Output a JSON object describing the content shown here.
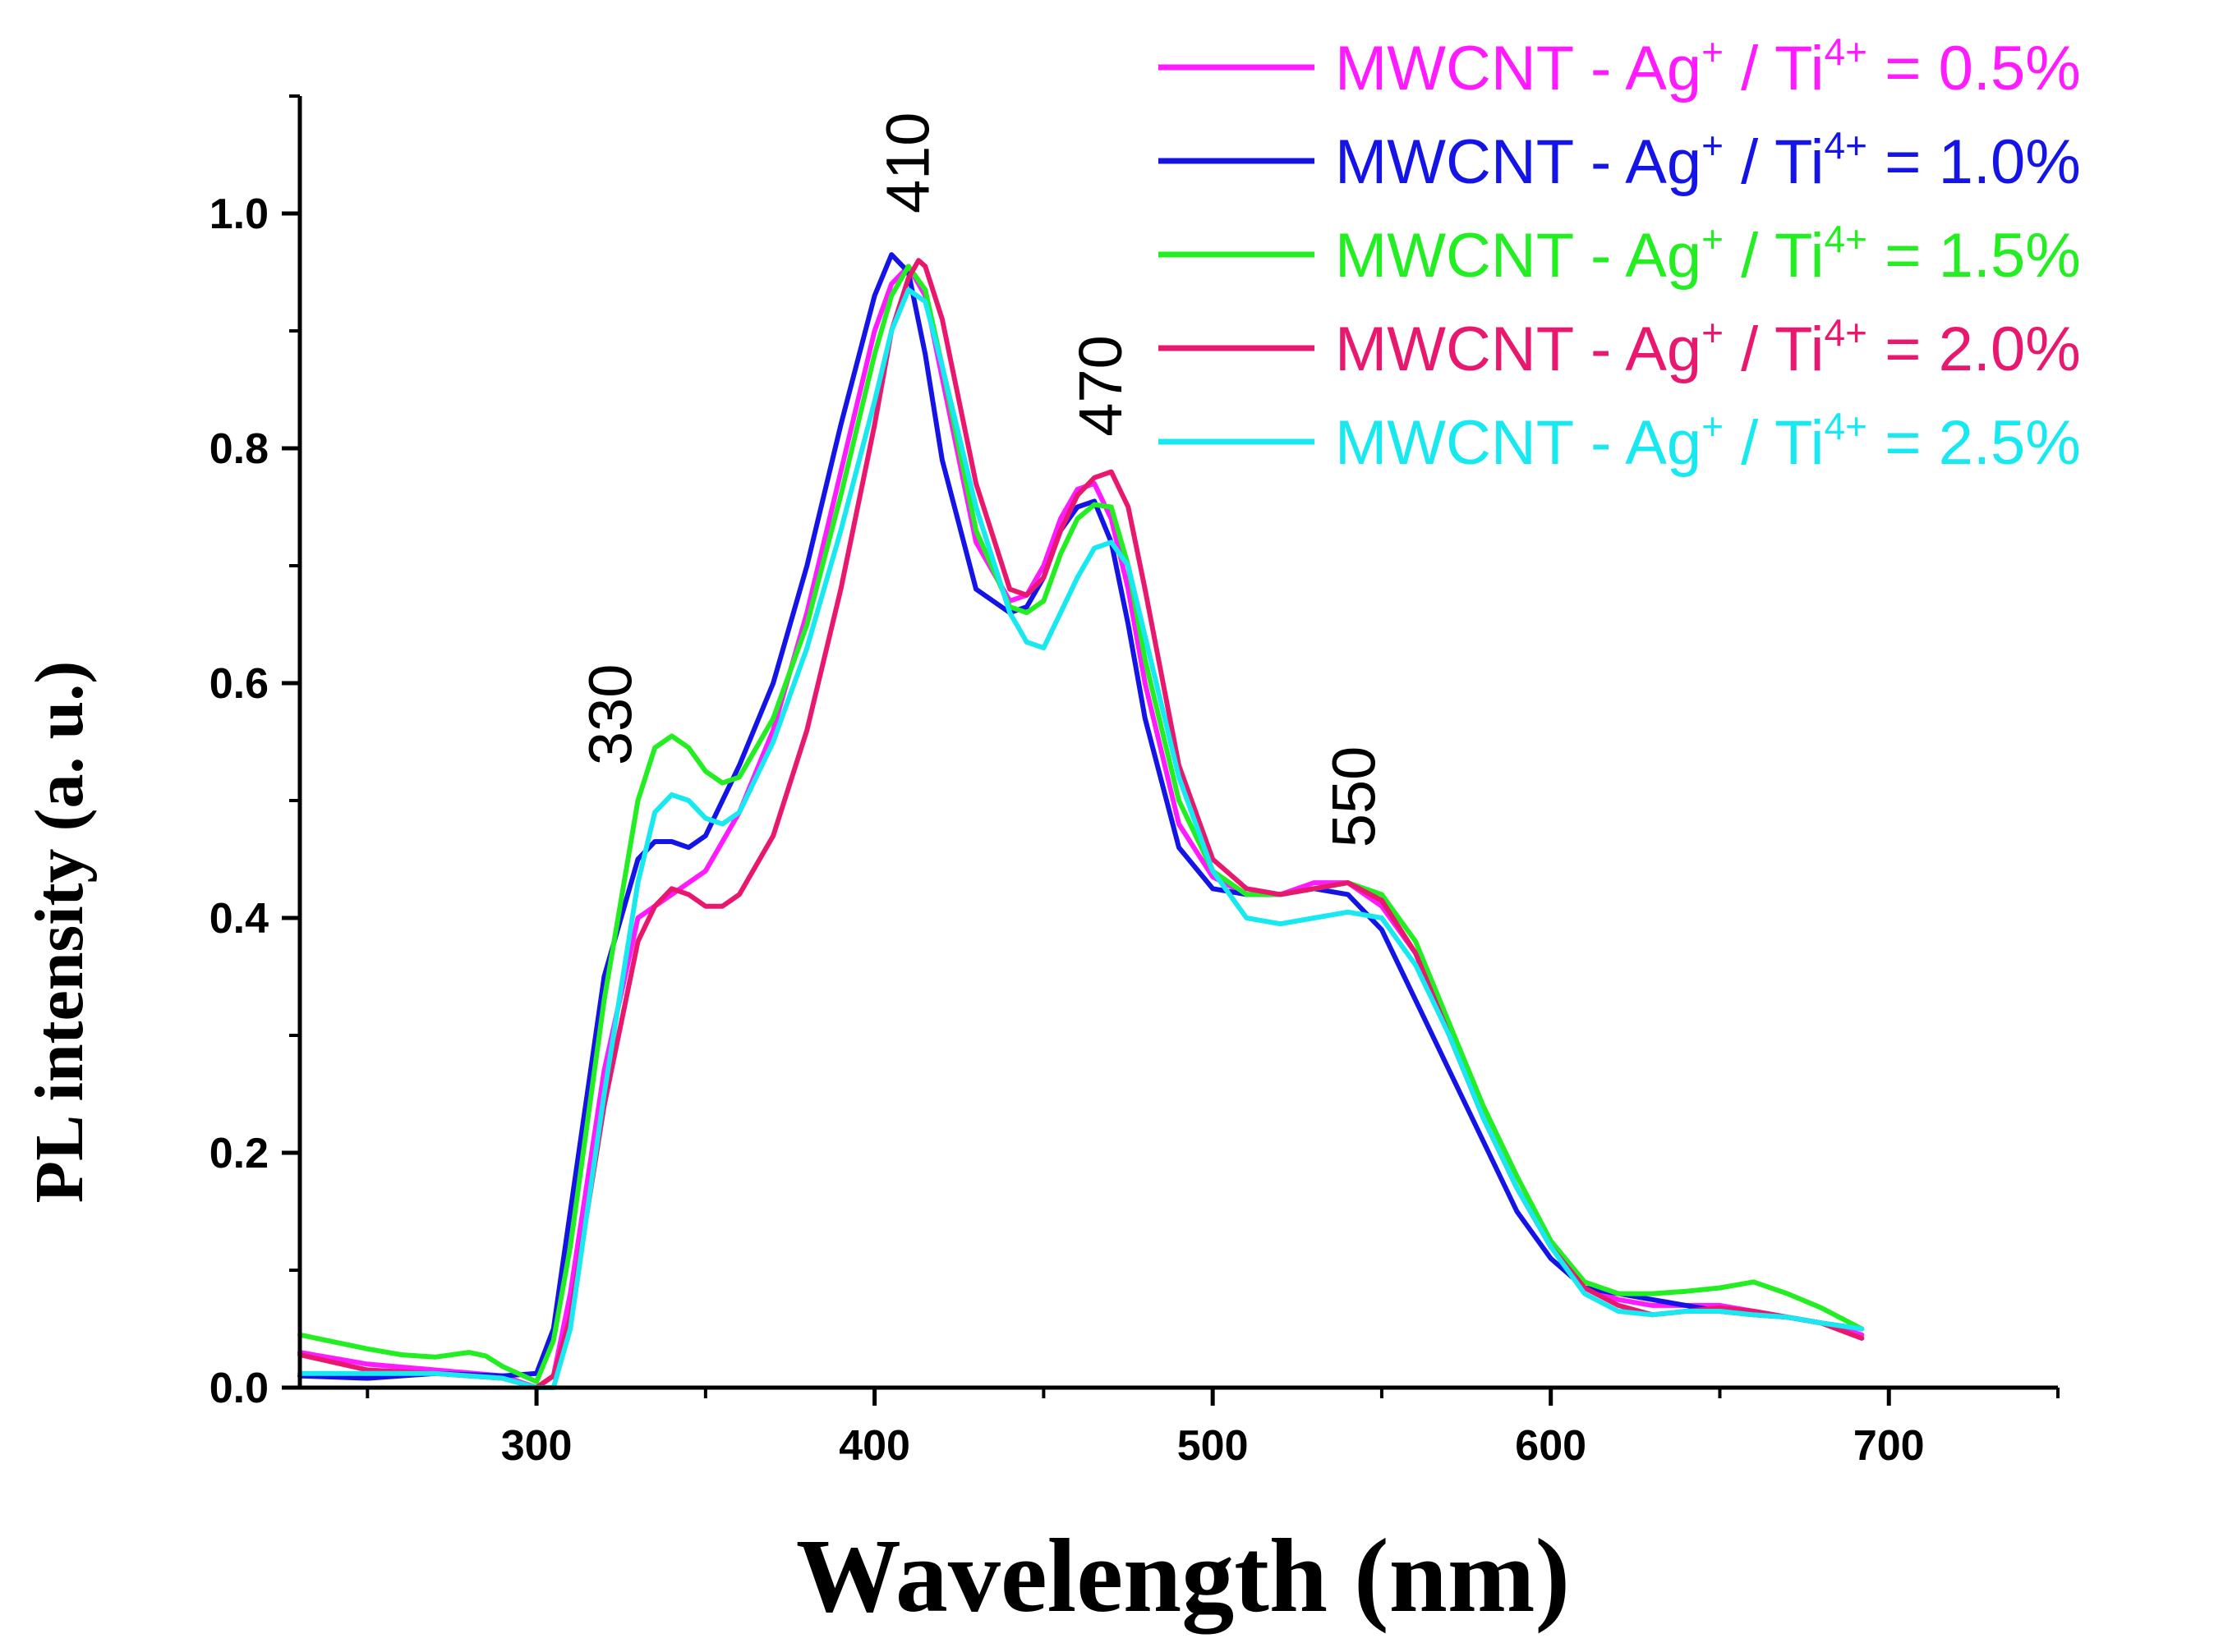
{
  "chart_data": {
    "type": "line",
    "title": "",
    "xlabel": "Wavelength (nm)",
    "ylabel": "PL intensity (a. u.)",
    "xlim": [
      230,
      750
    ],
    "ylim": [
      0,
      1.1
    ],
    "x_ticks": [
      "300",
      "400",
      "500",
      "600",
      "700"
    ],
    "y_ticks": [
      "0.0",
      "0.2",
      "0.4",
      "0.6",
      "0.8",
      "1.0"
    ],
    "annotations": [
      {
        "text": "330",
        "x": 328,
        "y": 0.53
      },
      {
        "text": "410",
        "x": 416,
        "y": 1.0
      },
      {
        "text": "470",
        "x": 473,
        "y": 0.81
      },
      {
        "text": "550",
        "x": 548,
        "y": 0.46
      }
    ],
    "legend_position": "top-right",
    "series": [
      {
        "name": "MWCNT - Ag+ / Ti4+ = 0.5%",
        "legend": {
          "prefix": "MWCNT - Ag",
          "sup1": "+",
          "mid": " / Ti",
          "sup2": "4+",
          "suffix": " = 0.5%"
        },
        "color": "#ff1aff",
        "x": [
          230,
          250,
          270,
          290,
          300,
          305,
          310,
          320,
          330,
          340,
          350,
          360,
          370,
          380,
          390,
          400,
          405,
          410,
          415,
          420,
          430,
          440,
          445,
          450,
          455,
          460,
          465,
          470,
          475,
          480,
          490,
          500,
          510,
          520,
          530,
          540,
          550,
          560,
          570,
          580,
          590,
          600,
          610,
          620,
          630,
          640,
          650,
          660,
          670,
          680,
          692
        ],
        "y": [
          0.03,
          0.02,
          0.015,
          0.01,
          0.0,
          0.01,
          0.08,
          0.27,
          0.4,
          0.42,
          0.44,
          0.49,
          0.56,
          0.66,
          0.78,
          0.9,
          0.94,
          0.955,
          0.93,
          0.86,
          0.72,
          0.67,
          0.675,
          0.7,
          0.74,
          0.765,
          0.77,
          0.74,
          0.68,
          0.6,
          0.48,
          0.435,
          0.42,
          0.42,
          0.43,
          0.43,
          0.41,
          0.37,
          0.3,
          0.23,
          0.17,
          0.12,
          0.085,
          0.075,
          0.07,
          0.07,
          0.07,
          0.065,
          0.06,
          0.055,
          0.045
        ]
      },
      {
        "name": "MWCNT - Ag+ / Ti4+ = 1.0%",
        "legend": {
          "prefix": "MWCNT - Ag",
          "sup1": "+",
          "mid": " / Ti",
          "sup2": "4+",
          "suffix": " = 1.0%"
        },
        "color": "#1414e6",
        "x": [
          230,
          250,
          270,
          290,
          300,
          305,
          310,
          320,
          330,
          335,
          340,
          345,
          350,
          360,
          370,
          380,
          390,
          400,
          405,
          410,
          415,
          420,
          430,
          440,
          445,
          450,
          455,
          460,
          465,
          470,
          475,
          480,
          490,
          500,
          510,
          520,
          530,
          540,
          550,
          560,
          570,
          580,
          590,
          600,
          610,
          620,
          630,
          640,
          650,
          660,
          670,
          680,
          692
        ],
        "y": [
          0.01,
          0.008,
          0.012,
          0.01,
          0.012,
          0.05,
          0.15,
          0.35,
          0.45,
          0.465,
          0.465,
          0.46,
          0.47,
          0.53,
          0.6,
          0.7,
          0.82,
          0.93,
          0.965,
          0.95,
          0.88,
          0.79,
          0.68,
          0.66,
          0.665,
          0.69,
          0.73,
          0.75,
          0.755,
          0.72,
          0.65,
          0.57,
          0.46,
          0.425,
          0.42,
          0.42,
          0.425,
          0.42,
          0.39,
          0.33,
          0.27,
          0.21,
          0.15,
          0.11,
          0.085,
          0.08,
          0.075,
          0.07,
          0.065,
          0.062,
          0.06,
          0.055,
          0.05
        ]
      },
      {
        "name": "MWCNT - Ag+ / Ti4+ = 1.5%",
        "legend": {
          "prefix": "MWCNT - Ag",
          "sup1": "+",
          "mid": " / Ti",
          "sup2": "4+",
          "suffix": " = 1.5%"
        },
        "color": "#22ee22",
        "x": [
          230,
          250,
          260,
          270,
          280,
          285,
          290,
          300,
          305,
          310,
          320,
          330,
          335,
          340,
          345,
          350,
          355,
          360,
          370,
          380,
          390,
          400,
          405,
          410,
          415,
          420,
          430,
          440,
          445,
          450,
          455,
          460,
          465,
          470,
          475,
          480,
          490,
          500,
          510,
          520,
          530,
          540,
          550,
          560,
          570,
          580,
          590,
          600,
          610,
          620,
          630,
          640,
          650,
          660,
          670,
          680,
          692
        ],
        "y": [
          0.045,
          0.033,
          0.028,
          0.026,
          0.03,
          0.027,
          0.018,
          0.005,
          0.04,
          0.12,
          0.33,
          0.5,
          0.545,
          0.555,
          0.545,
          0.525,
          0.515,
          0.52,
          0.57,
          0.65,
          0.76,
          0.88,
          0.93,
          0.955,
          0.935,
          0.87,
          0.73,
          0.665,
          0.66,
          0.67,
          0.71,
          0.74,
          0.752,
          0.75,
          0.7,
          0.62,
          0.5,
          0.44,
          0.42,
          0.42,
          0.425,
          0.43,
          0.42,
          0.38,
          0.31,
          0.24,
          0.18,
          0.125,
          0.09,
          0.08,
          0.08,
          0.082,
          0.085,
          0.09,
          0.08,
          0.068,
          0.05
        ]
      },
      {
        "name": "MWCNT - Ag+ / Ti4+ = 2.0%",
        "legend": {
          "prefix": "MWCNT - Ag",
          "sup1": "+",
          "mid": " / Ti",
          "sup2": "4+",
          "suffix": " = 2.0%"
        },
        "color": "#e8186f",
        "x": [
          230,
          250,
          270,
          290,
          300,
          305,
          310,
          320,
          330,
          335,
          340,
          345,
          350,
          355,
          360,
          370,
          380,
          390,
          400,
          405,
          410,
          413,
          415,
          420,
          430,
          440,
          445,
          450,
          455,
          460,
          465,
          470,
          475,
          480,
          490,
          500,
          510,
          520,
          530,
          540,
          550,
          560,
          570,
          580,
          590,
          600,
          610,
          620,
          630,
          640,
          650,
          660,
          670,
          680,
          692
        ],
        "y": [
          0.028,
          0.015,
          0.012,
          0.008,
          0.0,
          0.01,
          0.06,
          0.24,
          0.38,
          0.41,
          0.425,
          0.42,
          0.41,
          0.41,
          0.42,
          0.47,
          0.56,
          0.68,
          0.82,
          0.9,
          0.945,
          0.96,
          0.955,
          0.91,
          0.77,
          0.68,
          0.675,
          0.69,
          0.73,
          0.76,
          0.775,
          0.78,
          0.75,
          0.68,
          0.53,
          0.45,
          0.425,
          0.42,
          0.425,
          0.43,
          0.415,
          0.37,
          0.3,
          0.23,
          0.17,
          0.12,
          0.085,
          0.07,
          0.062,
          0.065,
          0.068,
          0.065,
          0.06,
          0.055,
          0.042
        ]
      },
      {
        "name": "MWCNT - Ag+ / Ti4+ = 2.5%",
        "legend": {
          "prefix": "MWCNT - Ag",
          "sup1": "+",
          "mid": " / Ti",
          "sup2": "4+",
          "suffix": " = 2.5%"
        },
        "color": "#18e8f0",
        "x": [
          230,
          250,
          270,
          290,
          300,
          305,
          310,
          320,
          330,
          335,
          340,
          345,
          350,
          355,
          360,
          370,
          380,
          390,
          400,
          405,
          410,
          415,
          420,
          430,
          440,
          445,
          450,
          455,
          460,
          465,
          470,
          475,
          480,
          490,
          500,
          510,
          520,
          530,
          540,
          550,
          560,
          570,
          580,
          590,
          600,
          610,
          620,
          630,
          640,
          650,
          660,
          670,
          680,
          692
        ],
        "y": [
          0.012,
          0.012,
          0.012,
          0.008,
          0.0,
          0.0,
          0.05,
          0.25,
          0.43,
          0.49,
          0.505,
          0.5,
          0.485,
          0.48,
          0.49,
          0.55,
          0.63,
          0.73,
          0.84,
          0.9,
          0.935,
          0.925,
          0.87,
          0.75,
          0.66,
          0.635,
          0.63,
          0.66,
          0.69,
          0.715,
          0.72,
          0.7,
          0.64,
          0.52,
          0.44,
          0.4,
          0.395,
          0.4,
          0.405,
          0.4,
          0.36,
          0.3,
          0.23,
          0.17,
          0.12,
          0.08,
          0.065,
          0.062,
          0.065,
          0.065,
          0.062,
          0.06,
          0.055,
          0.05
        ]
      }
    ]
  }
}
